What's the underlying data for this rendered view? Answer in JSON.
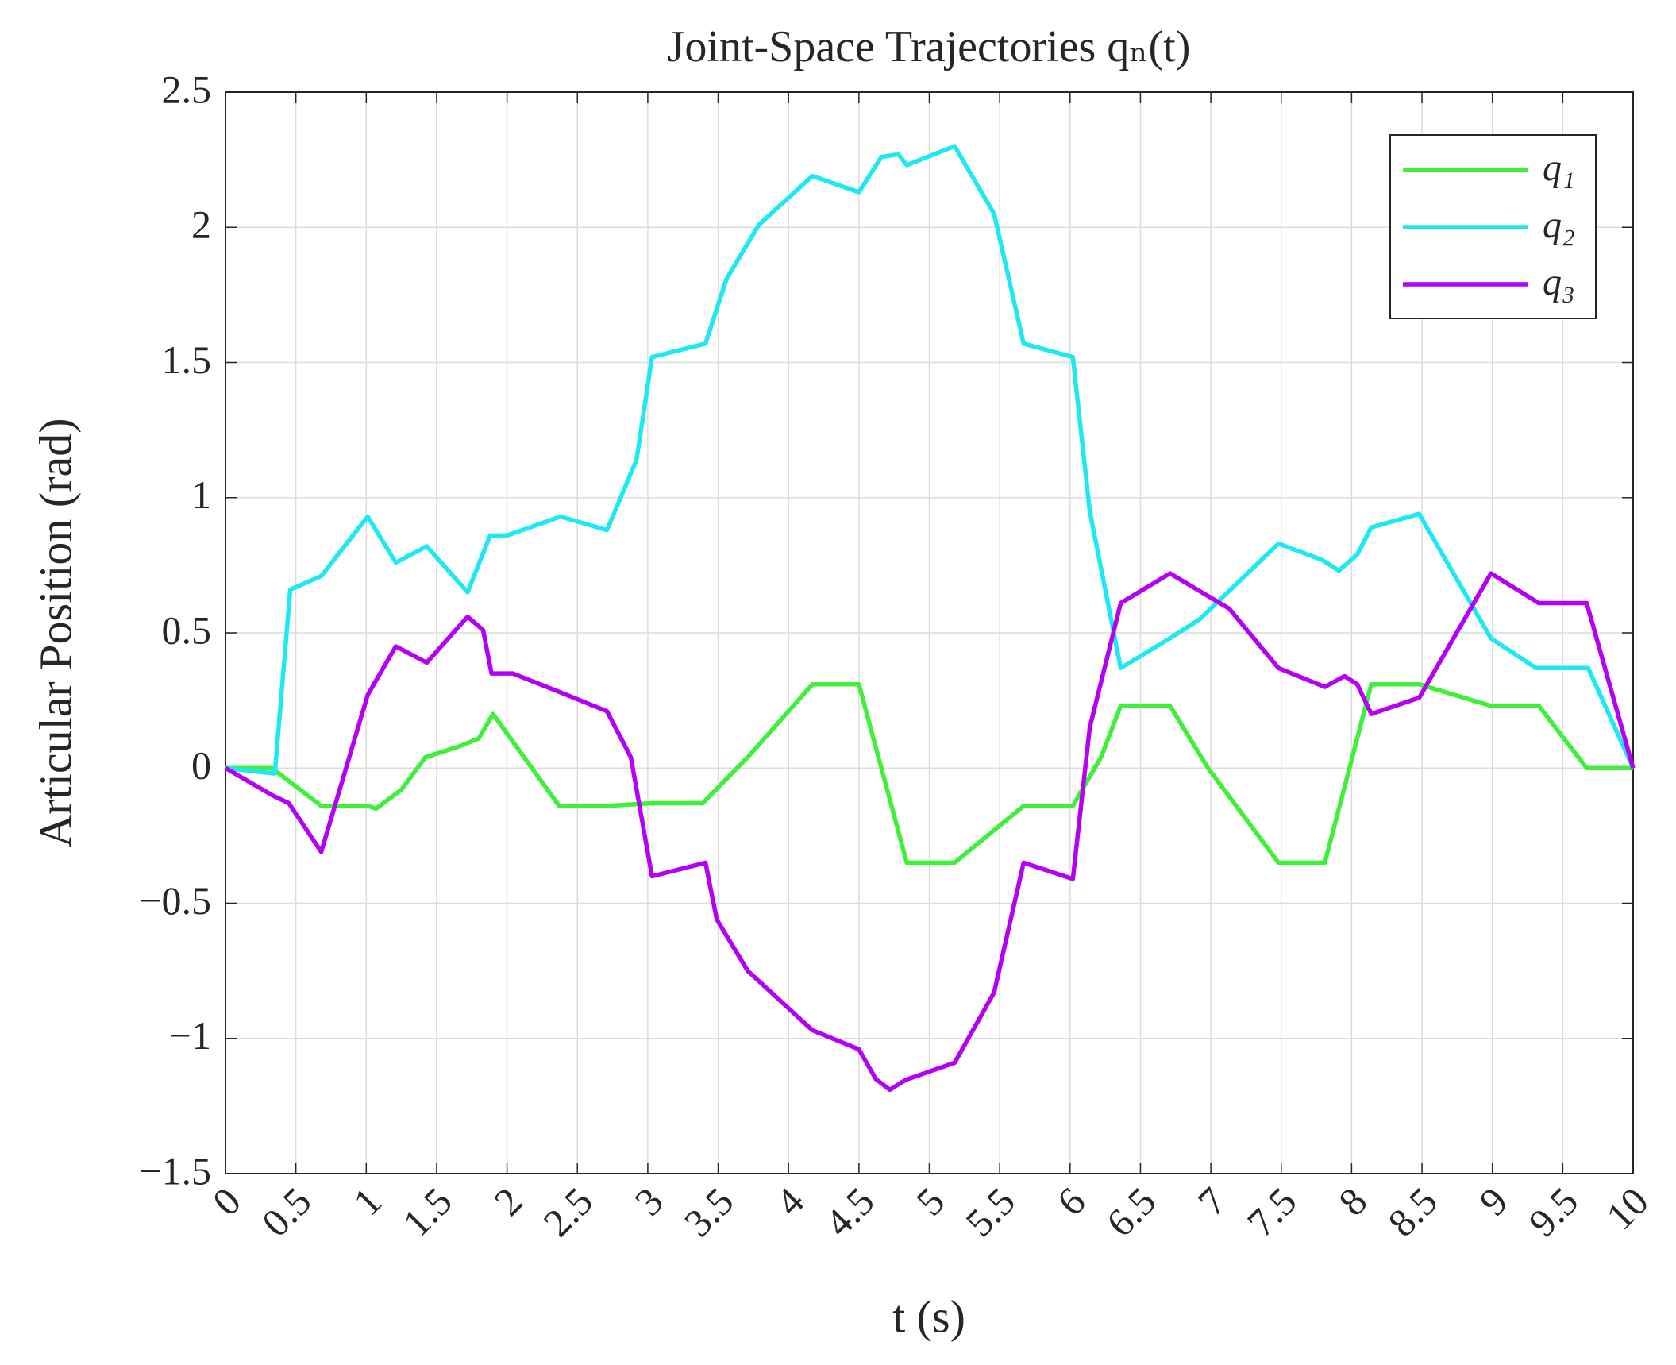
{
  "chart_data": {
    "type": "line",
    "title": "Joint-Space Trajectories qₙ(t)",
    "x_label": "t (s)",
    "y_label": "Articular Position (rad)",
    "xlim": [
      0,
      10
    ],
    "ylim": [
      -1.5,
      2.5
    ],
    "xticks": [
      0,
      0.5,
      1,
      1.5,
      2,
      2.5,
      3,
      3.5,
      4,
      4.5,
      5,
      5.5,
      6,
      6.5,
      7,
      7.5,
      8,
      8.5,
      9,
      9.5,
      10
    ],
    "yticks": [
      {
        "value": -1.5,
        "label": "−1.5"
      },
      {
        "value": -1,
        "label": "−1"
      },
      {
        "value": -0.5,
        "label": "−0.5"
      },
      0,
      0.5,
      1,
      1.5,
      2,
      2.5
    ],
    "grid": true,
    "legend": "top-right",
    "series": [
      {
        "name": "q₁",
        "color": "#3ef03a",
        "x": [
          0,
          0.33,
          0.68,
          1.01,
          1.07,
          1.25,
          1.42,
          1.66,
          1.8,
          1.9,
          2.37,
          2.71,
          3.03,
          3.39,
          3.71,
          4.17,
          4.5,
          4.84,
          5.18,
          5.67,
          6.02,
          6.22,
          6.36,
          6.71,
          6.98,
          7.48,
          7.81,
          8.14,
          8.48,
          8.99,
          9.33,
          9.67,
          10
        ],
        "values": [
          0,
          0,
          -0.14,
          -0.14,
          -0.15,
          -0.08,
          0.04,
          0.08,
          0.11,
          0.2,
          -0.14,
          -0.14,
          -0.13,
          -0.13,
          0.04,
          0.31,
          0.31,
          -0.35,
          -0.35,
          -0.14,
          -0.14,
          0.04,
          0.23,
          0.23,
          0,
          -0.35,
          -0.35,
          0.31,
          0.31,
          0.23,
          0.23,
          0,
          0
        ]
      },
      {
        "name": "q₂",
        "color": "#1ee8f2",
        "x": [
          0,
          0.35,
          0.46,
          0.68,
          1.01,
          1.21,
          1.43,
          1.72,
          1.88,
          2.0,
          2.38,
          2.71,
          2.92,
          3.03,
          3.41,
          3.56,
          3.79,
          4.17,
          4.5,
          4.66,
          4.78,
          4.84,
          5.18,
          5.46,
          5.67,
          6.02,
          6.14,
          6.36,
          6.71,
          6.92,
          7.48,
          7.79,
          7.91,
          8.04,
          8.14,
          8.48,
          8.99,
          9.31,
          9.68,
          10
        ],
        "values": [
          0,
          -0.02,
          0.66,
          0.71,
          0.93,
          0.76,
          0.82,
          0.65,
          0.86,
          0.86,
          0.93,
          0.88,
          1.14,
          1.52,
          1.57,
          1.81,
          2.01,
          2.19,
          2.13,
          2.26,
          2.27,
          2.23,
          2.3,
          2.05,
          1.57,
          1.52,
          0.95,
          0.37,
          0.48,
          0.55,
          0.83,
          0.77,
          0.73,
          0.79,
          0.89,
          0.94,
          0.48,
          0.37,
          0.37,
          0
        ]
      },
      {
        "name": "q₃",
        "color": "#b400f5",
        "x": [
          0,
          0.33,
          0.45,
          0.68,
          1.01,
          1.21,
          1.43,
          1.72,
          1.83,
          1.89,
          2.04,
          2.38,
          2.71,
          2.88,
          3.03,
          3.41,
          3.49,
          3.71,
          4.17,
          4.5,
          4.62,
          4.72,
          4.81,
          4.85,
          5.18,
          5.46,
          5.67,
          6.02,
          6.14,
          6.36,
          6.71,
          7.13,
          7.48,
          7.81,
          7.95,
          8.04,
          8.14,
          8.48,
          8.99,
          9.33,
          9.67,
          10
        ],
        "values": [
          0,
          -0.1,
          -0.13,
          -0.31,
          0.27,
          0.45,
          0.39,
          0.56,
          0.51,
          0.35,
          0.35,
          0.28,
          0.21,
          0.04,
          -0.4,
          -0.35,
          -0.56,
          -0.75,
          -0.97,
          -1.04,
          -1.15,
          -1.19,
          -1.16,
          -1.15,
          -1.09,
          -0.83,
          -0.35,
          -0.41,
          0.15,
          0.61,
          0.72,
          0.59,
          0.37,
          0.3,
          0.34,
          0.31,
          0.2,
          0.26,
          0.72,
          0.61,
          0.61,
          0
        ]
      }
    ]
  }
}
